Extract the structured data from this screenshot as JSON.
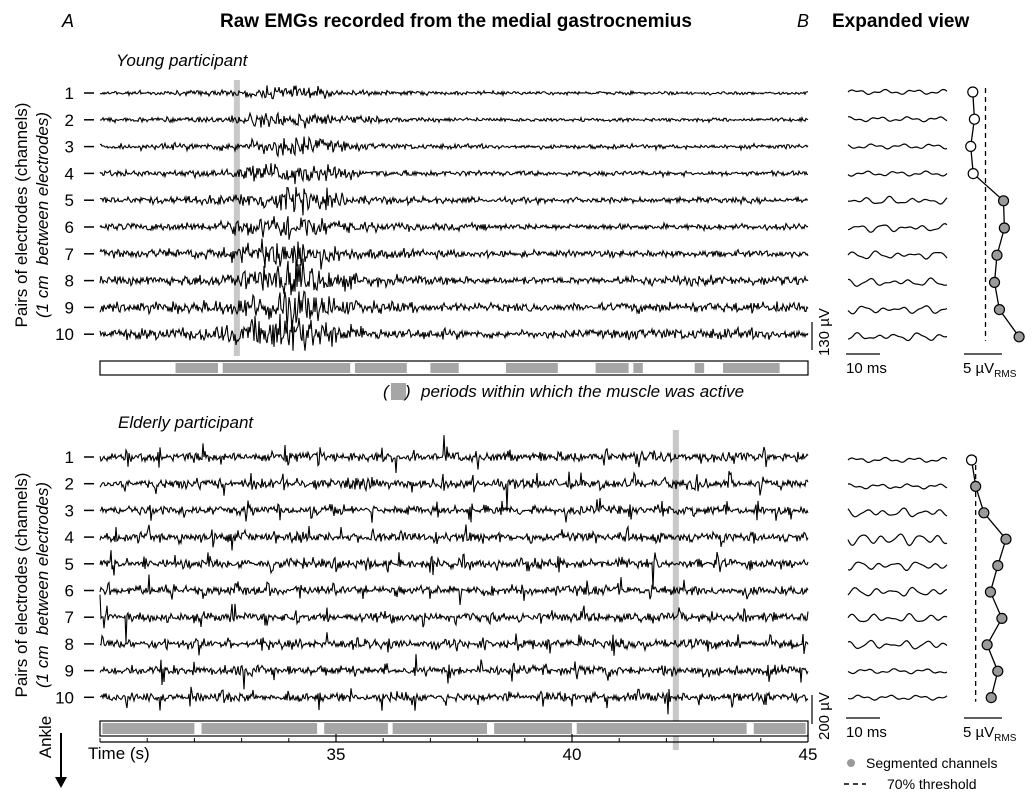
{
  "figure": {
    "panel_a": "A",
    "panel_b": "B",
    "title": "Raw EMGs recorded from the medial gastrocnemius",
    "expanded_title": "Expanded view",
    "active_label": "periods within which the muscle was active",
    "active_paren_open": "(",
    "active_paren_close": ")",
    "ylabel_line1": "Pairs of electrodes (channels)",
    "ylabel_line2_a": "(1 cm",
    "ylabel_line2_b": "between electrodes)",
    "ankle_label": "Ankle",
    "time_label": "Time (s)",
    "colors": {
      "trace": "#000000",
      "highlight": "#c8c8c8",
      "active": "#a6a6a6",
      "marker_fill": "#9a9a9a"
    }
  },
  "chart_data": [
    {
      "type": "line",
      "name": "young",
      "subtitle": "Young participant",
      "channels": [
        "1",
        "2",
        "3",
        "4",
        "5",
        "6",
        "7",
        "8",
        "9",
        "10"
      ],
      "amplitude_scale": "130 µV",
      "highlight_time_s": 32.9,
      "burst_time_s": 34.0,
      "active_periods_s": [
        [
          31.6,
          32.5
        ],
        [
          32.6,
          35.3
        ],
        [
          35.4,
          36.5
        ],
        [
          37.0,
          37.6
        ],
        [
          38.6,
          39.7
        ],
        [
          40.5,
          41.2
        ],
        [
          41.3,
          41.5
        ],
        [
          42.6,
          42.8
        ],
        [
          43.2,
          44.4
        ]
      ]
    },
    {
      "type": "line",
      "name": "elderly",
      "subtitle": "Elderly participant",
      "channels": [
        "1",
        "2",
        "3",
        "4",
        "5",
        "6",
        "7",
        "8",
        "9",
        "10"
      ],
      "amplitude_scale": "200 µV",
      "highlight_time_s": 42.2,
      "active_periods_s": [
        [
          30.05,
          32.0
        ],
        [
          32.15,
          34.6
        ],
        [
          34.75,
          36.1
        ],
        [
          36.2,
          38.2
        ],
        [
          38.35,
          40.0
        ],
        [
          40.1,
          43.7
        ],
        [
          43.85,
          44.95
        ]
      ]
    },
    {
      "type": "line",
      "name": "expanded_young",
      "time_scale": "10 ms",
      "rms_scale": "5 µV",
      "rms_subscript": "RMS",
      "rms_values": [
        0.95,
        1.15,
        0.7,
        1.0,
        4.7,
        4.8,
        3.9,
        3.6,
        4.2,
        6.6
      ],
      "segmented": [
        false,
        false,
        false,
        false,
        true,
        true,
        true,
        true,
        true,
        true
      ],
      "threshold": 2.5
    },
    {
      "type": "line",
      "name": "expanded_elderly",
      "time_scale": "10 ms",
      "rms_scale": "5 µV",
      "rms_subscript": "RMS",
      "rms_values": [
        0.8,
        1.3,
        2.3,
        5.0,
        4.0,
        3.1,
        4.5,
        2.7,
        4.0,
        3.2
      ],
      "segmented": [
        false,
        true,
        true,
        true,
        true,
        true,
        true,
        true,
        true,
        true
      ],
      "threshold": 1.3
    }
  ],
  "time_axis": {
    "ticks": [
      35,
      40,
      45
    ],
    "range": [
      30,
      45
    ]
  },
  "legend": {
    "segmented_label": "Segmented channels",
    "threshold_label": "70% threshold"
  }
}
